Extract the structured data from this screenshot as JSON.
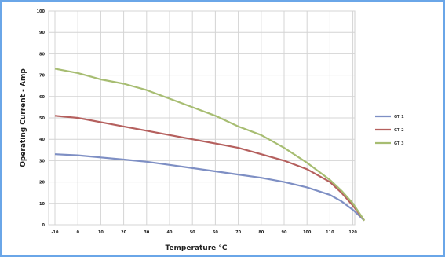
{
  "chart_data": {
    "type": "line",
    "title": "",
    "xlabel": "Temperature °C",
    "ylabel": "Operating Current - Amp",
    "xlim": [
      -10,
      125
    ],
    "ylim": [
      0,
      100
    ],
    "x_ticks": [
      "-10",
      "0",
      "10",
      "20",
      "30",
      "40",
      "50",
      "60",
      "70",
      "80",
      "90",
      "100",
      "110",
      "120"
    ],
    "y_ticks": [
      "0",
      "10",
      "20",
      "30",
      "40",
      "50",
      "60",
      "70",
      "80",
      "90",
      "100"
    ],
    "grid": true,
    "legend_position": "right",
    "x": [
      -10,
      0,
      10,
      20,
      30,
      40,
      50,
      60,
      70,
      80,
      90,
      100,
      110,
      115,
      120,
      125
    ],
    "series": [
      {
        "name": "GT 1",
        "color": "#7e8fc4",
        "values": [
          33,
          32.5,
          31.5,
          30.5,
          29.5,
          28,
          26.5,
          25,
          23.5,
          22,
          20,
          17.5,
          14,
          11,
          7,
          2
        ]
      },
      {
        "name": "GT 2",
        "color": "#b5605e",
        "values": [
          51,
          50,
          48,
          46,
          44,
          42,
          40,
          38,
          36,
          33,
          30,
          26,
          20,
          15,
          9,
          2
        ]
      },
      {
        "name": "GT 3",
        "color": "#a7bd72",
        "values": [
          73,
          71,
          68,
          66,
          63,
          59,
          55,
          51,
          46,
          42,
          36,
          29,
          21,
          16,
          10,
          2
        ]
      }
    ]
  }
}
